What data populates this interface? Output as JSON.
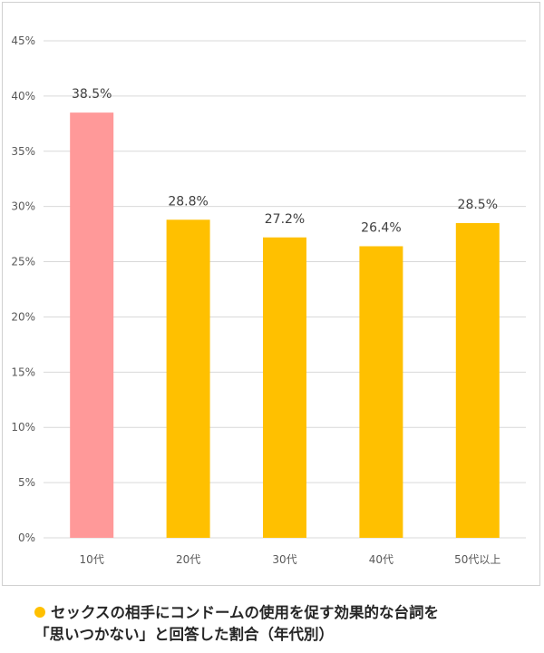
{
  "chart_data": {
    "type": "bar",
    "categories": [
      "10代",
      "20代",
      "30代",
      "40代",
      "50代以上"
    ],
    "values": [
      38.5,
      28.8,
      27.2,
      26.4,
      28.5
    ],
    "value_labels": [
      "38.5%",
      "28.8%",
      "27.2%",
      "26.4%",
      "28.5%"
    ],
    "bar_colors": [
      "#ff9999",
      "#ffc000",
      "#ffc000",
      "#ffc000",
      "#ffc000"
    ],
    "ylim": [
      0,
      45
    ],
    "y_ticks": [
      0,
      5,
      10,
      15,
      20,
      25,
      30,
      35,
      40,
      45
    ],
    "y_tick_labels": [
      "0%",
      "5%",
      "10%",
      "15%",
      "20%",
      "25%",
      "30%",
      "35%",
      "40%",
      "45%"
    ],
    "grid": true,
    "title": "",
    "xlabel": "",
    "ylabel": ""
  },
  "caption": {
    "line1": "セックスの相手にコンドームの使用を促す効果的な台詞を",
    "line2": "「思いつかない」と回答した割合（年代別）",
    "bullet_color": "#ffc000"
  }
}
